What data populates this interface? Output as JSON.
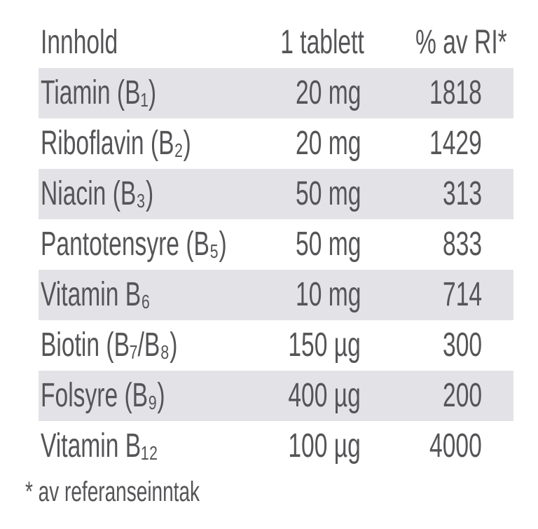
{
  "table": {
    "header": [
      "Innhold",
      "1 tablett",
      "% av RI*"
    ],
    "rows": [
      [
        "Tiamin (B₁)",
        "20 mg",
        1818
      ],
      [
        "Riboflavin (B₂)",
        "20 mg",
        1429
      ],
      [
        "Niacin (B₃)",
        "50 mg",
        313
      ],
      [
        "Pantotensyre (B₅)",
        "50 mg",
        833
      ],
      [
        "Vitamin B₆",
        "10 mg",
        714
      ],
      [
        "Biotin (B₇/B₈)",
        "150 µg",
        300
      ],
      [
        "Folsyre (B₉)",
        "400 µg",
        200
      ],
      [
        "Vitamin B₁₂",
        "100 µg",
        4000
      ]
    ],
    "footnote": "* av referanseinntak"
  }
}
